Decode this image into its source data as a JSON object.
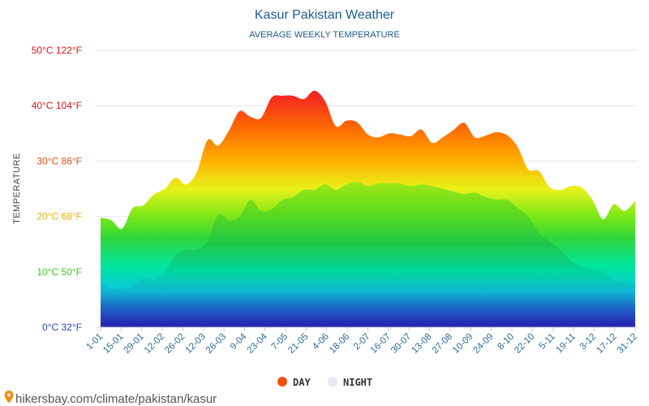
{
  "header": {
    "title": "Kasur Pakistan Weather",
    "subtitle": "AVERAGE WEEKLY TEMPERATURE"
  },
  "source": {
    "text": "hikersbay.com/climate/pakistan/kasur",
    "icon": "location-pin-icon"
  },
  "legend": [
    {
      "label": "DAY",
      "color": "#f0520f"
    },
    {
      "label": "NIGHT",
      "color": "#e4e9f1"
    }
  ],
  "chart_data": {
    "type": "area",
    "title": "Kasur Pakistan Weather",
    "subtitle": "AVERAGE WEEKLY TEMPERATURE",
    "ylabel": "TEMPERATURE",
    "xlabel": "",
    "ylim": [
      0,
      50
    ],
    "y_ticks": [
      {
        "value": 0,
        "label": "0°C 32°F",
        "color": "#2d47b0"
      },
      {
        "value": 10,
        "label": "10°C 50°F",
        "color": "#35c91a"
      },
      {
        "value": 20,
        "label": "20°C 68°F",
        "color": "#e8b000"
      },
      {
        "value": 30,
        "label": "30°C 86°F",
        "color": "#e84b10"
      },
      {
        "value": 40,
        "label": "40°C 104°F",
        "color": "#d8161c"
      },
      {
        "value": 50,
        "label": "50°C 122°F",
        "color": "#d8161c"
      }
    ],
    "x_labels": [
      "1-01",
      "15-01",
      "29-01",
      "12-02",
      "26-02",
      "12-03",
      "26-03",
      "9-04",
      "23-04",
      "7-05",
      "21-05",
      "4-06",
      "18-06",
      "2-07",
      "16-07",
      "30-07",
      "13-08",
      "27-08",
      "10-09",
      "24-09",
      "8-10",
      "22-10",
      "5-11",
      "19-11",
      "3-12",
      "17-12",
      "31-12"
    ],
    "grid": true,
    "legend_position": "bottom",
    "series": [
      {
        "name": "DAY",
        "values": [
          19.8,
          19.3,
          17.8,
          21.5,
          22.0,
          24.0,
          25.0,
          27.0,
          25.8,
          28.0,
          33.8,
          32.8,
          35.5,
          39.0,
          38.0,
          37.8,
          41.5,
          41.8,
          41.8,
          41.2,
          42.7,
          40.8,
          36.3,
          37.3,
          37.0,
          34.8,
          34.3,
          35.0,
          34.8,
          34.5,
          35.7,
          33.3,
          34.3,
          35.6,
          36.9,
          34.3,
          34.6,
          35.2,
          34.7,
          32.6,
          28.5,
          28.2,
          25.3,
          24.8,
          25.5,
          25.2,
          23.0,
          19.5,
          22.2,
          21.0,
          22.8
        ]
      },
      {
        "name": "NIGHT",
        "values": [
          8.0,
          7.0,
          7.0,
          7.3,
          8.8,
          8.5,
          10.0,
          13.0,
          14.0,
          14.0,
          15.5,
          20.3,
          19.3,
          20.0,
          23.0,
          21.0,
          21.3,
          23.0,
          23.5,
          24.8,
          24.8,
          25.8,
          24.8,
          25.8,
          26.3,
          25.5,
          26.0,
          26.0,
          26.0,
          25.5,
          25.8,
          25.5,
          25.0,
          24.5,
          24.0,
          24.3,
          23.5,
          23.0,
          23.0,
          21.5,
          20.0,
          17.0,
          15.5,
          14.0,
          12.0,
          11.0,
          10.5,
          10.0,
          8.5,
          8.0,
          7.8
        ]
      }
    ]
  }
}
